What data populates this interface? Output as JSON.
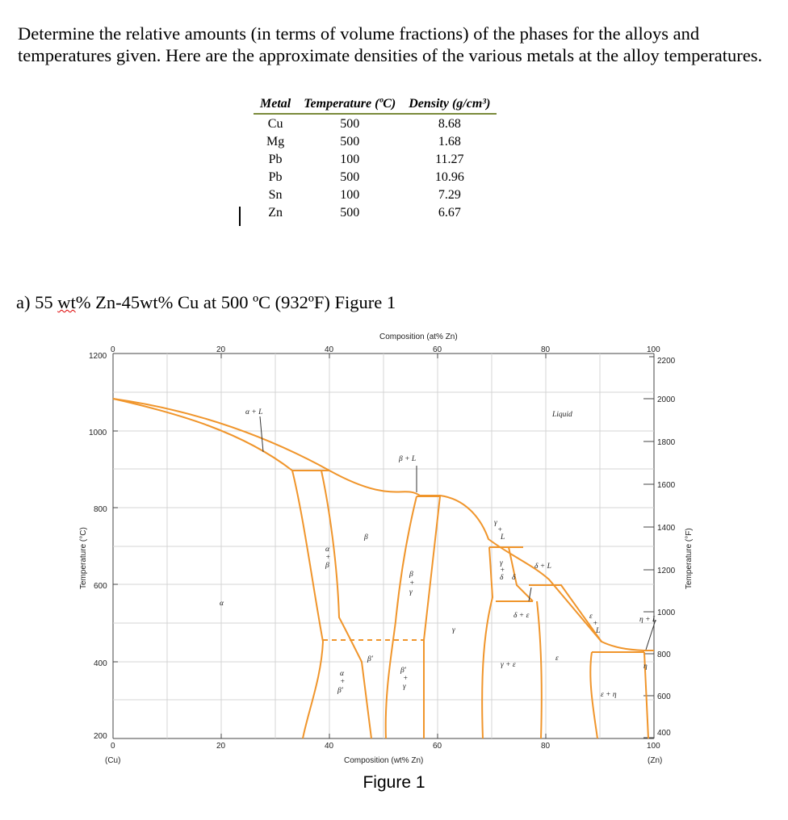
{
  "intro": "Determine the relative amounts (in terms of volume fractions) of the phases for the alloys and temperatures given. Here are the approximate densities of the various metals at the alloy temperatures.",
  "density_table": {
    "headers": [
      "Metal",
      "Temperature (ºC)",
      "Density (g/cm³)"
    ],
    "rows": [
      [
        "Cu",
        "500",
        "8.68"
      ],
      [
        "Mg",
        "500",
        "1.68"
      ],
      [
        "Pb",
        "100",
        "11.27"
      ],
      [
        "Pb",
        "500",
        "10.96"
      ],
      [
        "Sn",
        "100",
        "7.29"
      ],
      [
        "Zn",
        "500",
        "6.67"
      ]
    ]
  },
  "question": {
    "prefix": "a) 55 ",
    "flagged_word": "wt",
    "suffix": "% Zn-45wt% Cu at 500 ºC (932ºF) Figure 1"
  },
  "diagram": {
    "top_axis_title": "Composition (at% Zn)",
    "top_ticks": [
      "0",
      "20",
      "40",
      "60",
      "80",
      "100"
    ],
    "bottom_axis_title": "Composition (wt% Zn)",
    "bottom_ticks": [
      "0",
      "20",
      "40",
      "60",
      "80",
      "100"
    ],
    "left_end_label": "(Cu)",
    "right_end_label": "(Zn)",
    "left_axis_title": "Temperature (°C)",
    "left_ticks": [
      "1200",
      "1000",
      "800",
      "600",
      "400",
      "200"
    ],
    "right_axis_title": "Temperature (°F)",
    "right_ticks": [
      "2200",
      "2000",
      "1800",
      "1600",
      "1400",
      "1200",
      "1000",
      "800",
      "600",
      "400"
    ],
    "line_color": "#f0952b",
    "phase_labels": {
      "alpha_L": "α + L",
      "liquid": "Liquid",
      "beta_L": "β + L",
      "gamma_L_top": "γ",
      "gamma_L_plus": "+",
      "gamma_L_bottom": "L",
      "beta": "β",
      "alpha_beta_a": "α",
      "alpha_beta_plus": "+",
      "alpha_beta_b": "β",
      "beta_gamma_a": "β",
      "beta_gamma_plus": "+",
      "beta_gamma_b": "γ",
      "alpha": "α",
      "gamma_delta_a": "γ",
      "gamma_delta_plus": "+",
      "gamma_delta_b": "δ",
      "delta": "δ",
      "delta_L": "δ + L",
      "delta_eps": "δ + ε",
      "gamma": "γ",
      "eps_L_a": "ε",
      "eps_L_plus": "+",
      "eps_L_b": "L",
      "eta_L": "η + L",
      "beta_prime": "β′",
      "alpha_betap_a": "α",
      "alpha_betap_plus": "+",
      "alpha_betap_b": "β′",
      "betap_gamma_a": "β′",
      "betap_gamma_plus": "+",
      "betap_gamma_b": "γ",
      "gamma_eps": "γ + ε",
      "eps": "ε",
      "eta": "η",
      "eps_eta": "ε + η"
    }
  },
  "figure_caption": "Figure 1"
}
